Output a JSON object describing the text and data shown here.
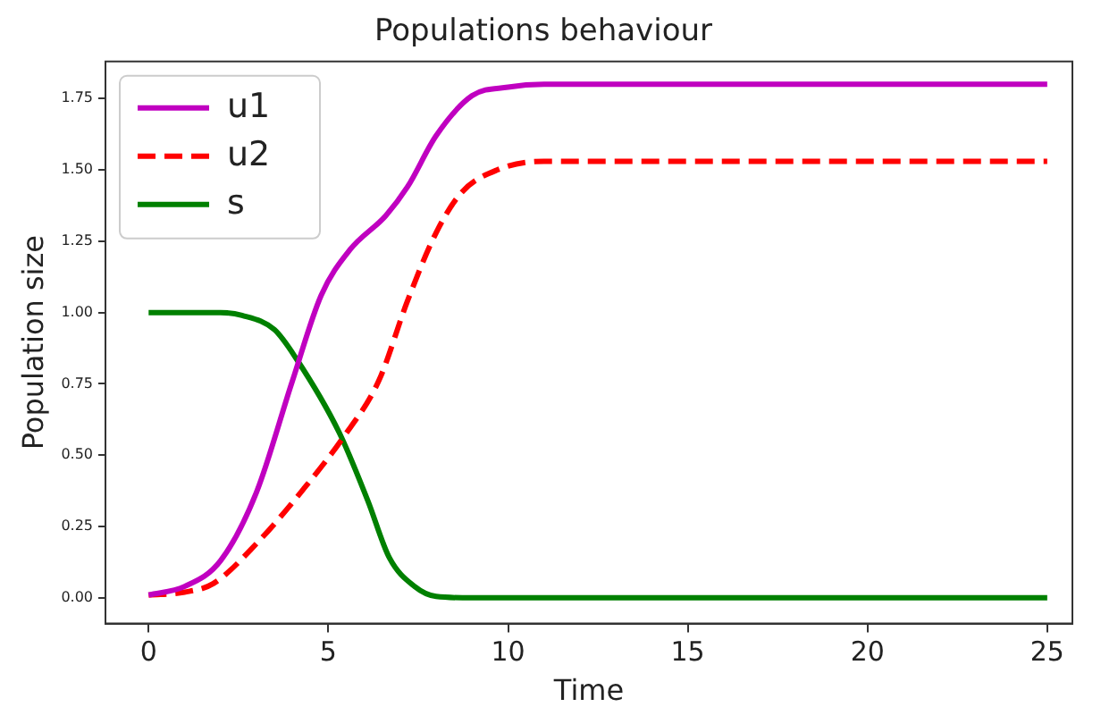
{
  "chart_data": {
    "type": "line",
    "title": "Populations behaviour",
    "xlabel": "Time",
    "ylabel": "Population size",
    "xlim": [
      -1.2,
      25.7
    ],
    "ylim": [
      -0.09,
      1.88
    ],
    "xticks": [
      0,
      5,
      10,
      15,
      20,
      25
    ],
    "yticks": [
      {
        "value": 0,
        "label": "0.00"
      },
      {
        "value": 0.25,
        "label": "0.25"
      },
      {
        "value": 0.5,
        "label": "0.50"
      },
      {
        "value": 0.75,
        "label": "0.75"
      },
      {
        "value": 1,
        "label": "1.00"
      },
      {
        "value": 1.25,
        "label": "1.25"
      },
      {
        "value": 1.5,
        "label": "1.50"
      },
      {
        "value": 1.75,
        "label": "1.75"
      }
    ],
    "grid": false,
    "legend": "top left",
    "marker": "none",
    "series": [
      {
        "name": "u1",
        "color": "#c000c0",
        "line_style": "solid",
        "x": [
          0,
          1,
          2,
          3,
          4,
          4.8,
          5.6,
          6.6,
          7.2,
          8,
          9,
          10,
          11,
          13,
          15,
          20,
          25
        ],
        "values": [
          0.01,
          0.04,
          0.13,
          0.37,
          0.76,
          1.06,
          1.22,
          1.34,
          1.44,
          1.62,
          1.76,
          1.79,
          1.8,
          1.8,
          1.8,
          1.8,
          1.8
        ]
      },
      {
        "name": "u2",
        "color": "#ff0000",
        "line_style": "dashed",
        "x": [
          0,
          1,
          1.8,
          3,
          4.3,
          5.4,
          6.4,
          7.2,
          8,
          8.7,
          9.7,
          11,
          13,
          15,
          20,
          25
        ],
        "values": [
          0.01,
          0.02,
          0.05,
          0.19,
          0.38,
          0.56,
          0.76,
          1.04,
          1.28,
          1.42,
          1.5,
          1.53,
          1.53,
          1.53,
          1.53,
          1.53
        ]
      },
      {
        "name": "s",
        "color": "#008000",
        "line_style": "solid",
        "x": [
          0,
          1,
          2,
          2.6,
          3.5,
          4.1,
          5.3,
          6.1,
          6.7,
          7.4,
          8,
          9,
          15,
          20,
          25
        ],
        "values": [
          1,
          1,
          1,
          0.99,
          0.94,
          0.84,
          0.58,
          0.34,
          0.14,
          0.04,
          0.005,
          0,
          0,
          0,
          0
        ]
      }
    ]
  }
}
